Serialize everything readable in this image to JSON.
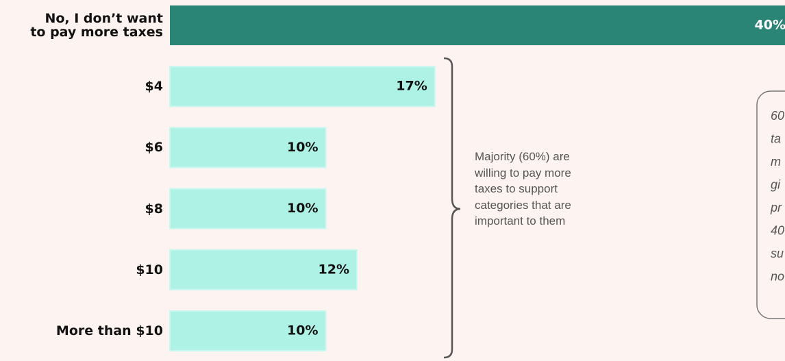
{
  "chart_data": {
    "type": "bar",
    "orientation": "horizontal",
    "categories": [
      "No, I don’t want\nto pay more taxes",
      "$4",
      "$6",
      "$8",
      "$10",
      "More than $10"
    ],
    "values": [
      40,
      17,
      10,
      10,
      12,
      10
    ],
    "value_labels": [
      "40%",
      "17%",
      "10%",
      "10%",
      "12%",
      "10%"
    ],
    "colors": [
      "#2a8577",
      "#aef2e6",
      "#aef2e6",
      "#aef2e6",
      "#aef2e6",
      "#aef2e6"
    ],
    "annotation": "Majority (60%) are\nwilling to pay more\ntaxes to support\ncategories that are\nimportant to them",
    "callout_lines": [
      "60",
      "ta",
      "m",
      "gi",
      "pr",
      "40",
      "su",
      "no"
    ]
  }
}
